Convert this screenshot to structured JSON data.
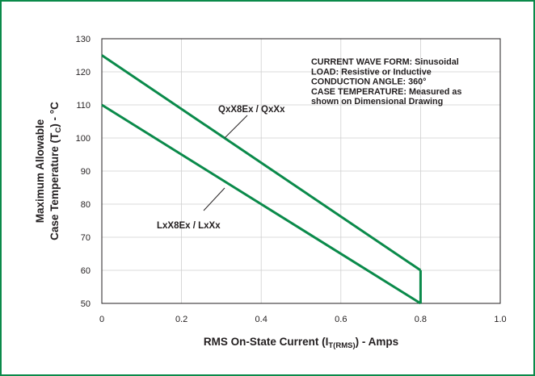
{
  "chart_data": {
    "type": "line",
    "xlabel_main": "RMS On-State Current (I",
    "xlabel_sub": "T(RMS)",
    "xlabel_tail": ") - Amps",
    "ylabel_line1": "Maximum Allowable",
    "ylabel_line2_main": "Case Temperature (T",
    "ylabel_line2_sub": "C",
    "ylabel_line2_tail": ") - °C",
    "xlim": [
      0,
      1.0
    ],
    "ylim": [
      50,
      130
    ],
    "x_ticks": [
      "0",
      "0.2",
      "0.4",
      "0.6",
      "0.8",
      "1.0"
    ],
    "y_ticks": [
      "50",
      "60",
      "70",
      "80",
      "90",
      "100",
      "110",
      "120",
      "130"
    ],
    "grid": true,
    "series_color": "#0a8a4a",
    "series": [
      {
        "name": "QxX8Ex / QxXx",
        "x": [
          0,
          0.8
        ],
        "y": [
          125,
          60
        ]
      },
      {
        "name": "LxX8Ex / LxXx",
        "x": [
          0,
          0.8
        ],
        "y": [
          110,
          50
        ]
      }
    ],
    "boundary": {
      "x": [
        0.8,
        0.8
      ],
      "y": [
        50,
        60
      ]
    },
    "annotations": [
      "CURRENT WAVE FORM: Sinusoidal",
      "LOAD: Resistive or Inductive",
      "CONDUCTION ANGLE: 360°",
      "CASE TEMPERATURE: Measured as",
      "shown on Dimensional Drawing"
    ]
  }
}
